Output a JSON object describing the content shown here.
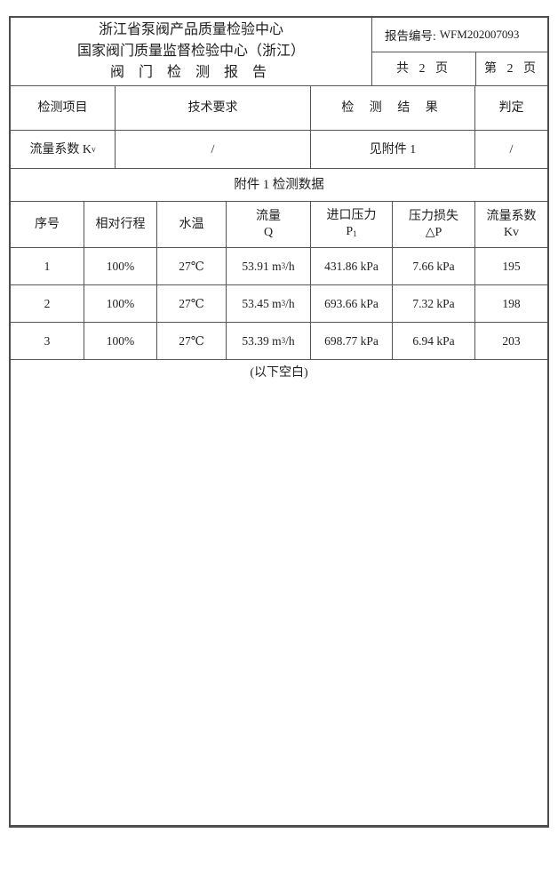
{
  "header": {
    "org_line1": "浙江省泵阀产品质量检验中心",
    "org_line2": "国家阀门质量监督检验中心（浙江）",
    "title": "阀 门 检 测 报 告",
    "report_no_label": "报告编号:",
    "report_no": "WFM202007093",
    "pages_total": "共 2 页",
    "page_current": "第 2 页"
  },
  "summary": {
    "col_item": "检测项目",
    "col_requirement": "技术要求",
    "col_result": "检 测 结 果",
    "col_judgement": "判定",
    "row": {
      "item_main": "流量系数 K",
      "item_sub": "v",
      "requirement": "/",
      "result": "见附件 1",
      "judgement": "/"
    }
  },
  "attachment": {
    "title": "附件 1  检测数据",
    "columns": {
      "no": "序号",
      "stroke": "相对行程",
      "temp": "水温",
      "flow_l1": "流量",
      "flow_l2": "Q",
      "inlet_l1": "进口压力",
      "inlet_l2_main": "P",
      "inlet_l2_sub": "1",
      "loss_l1": "压力损失",
      "loss_l2": "△P",
      "kv_l1": "流量系数",
      "kv_l2": "Kv"
    },
    "rows": [
      {
        "no": "1",
        "stroke": "100%",
        "temp": "27℃",
        "flow_pre": "53.91 m",
        "flow_sup": "3",
        "flow_post": "/h",
        "inlet": "431.86 kPa",
        "loss": "7.66 kPa",
        "kv": "195"
      },
      {
        "no": "2",
        "stroke": "100%",
        "temp": "27℃",
        "flow_pre": "53.45 m",
        "flow_sup": "3",
        "flow_post": "/h",
        "inlet": "693.66 kPa",
        "loss": "7.32 kPa",
        "kv": "198"
      },
      {
        "no": "3",
        "stroke": "100%",
        "temp": "27℃",
        "flow_pre": "53.39 m",
        "flow_sup": "3",
        "flow_post": "/h",
        "inlet": "698.77 kPa",
        "loss": "6.94 kPa",
        "kv": "203"
      }
    ],
    "blank_note": "(以下空白)"
  },
  "colors": {
    "border": "#4d4d4d",
    "text": "#1e1e1e",
    "page_bg": "#ffffff"
  }
}
